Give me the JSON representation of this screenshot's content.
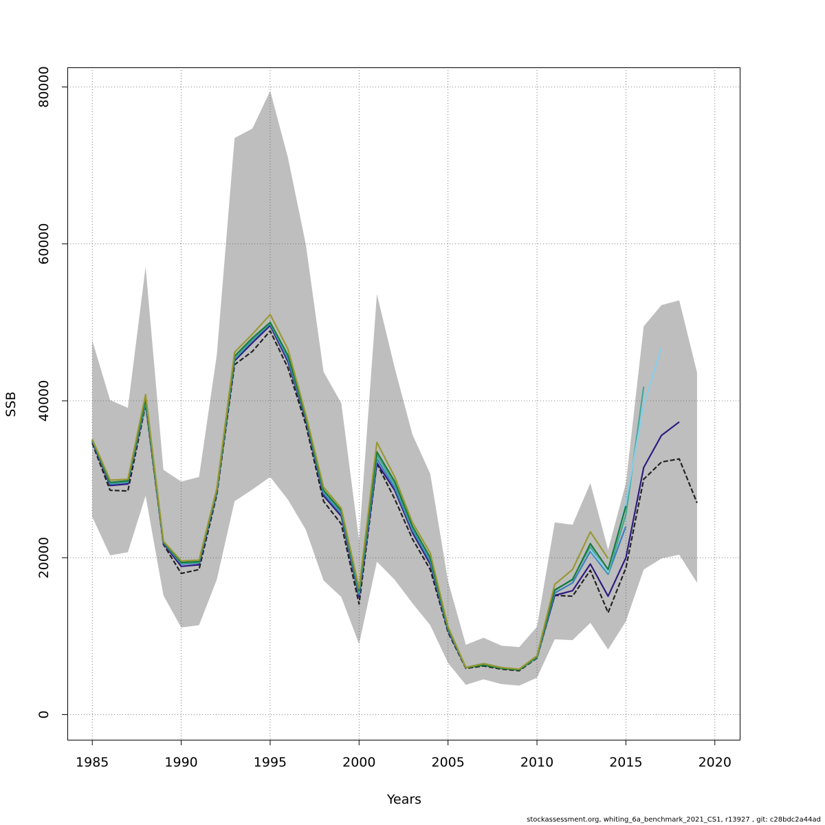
{
  "chart_data": {
    "type": "line",
    "title": "",
    "xlabel": "Years",
    "ylabel": "SSB",
    "xlim": [
      1983.6,
      2021.4
    ],
    "ylim": [
      -3200,
      82500
    ],
    "xticks": [
      1985,
      1990,
      1995,
      2000,
      2005,
      2010,
      2015,
      2020
    ],
    "yticks": [
      0,
      20000,
      40000,
      60000,
      80000
    ],
    "grid": true,
    "confidence_band": {
      "color": "#bebebe",
      "x": [
        1985,
        1986,
        1987,
        1988,
        1989,
        1990,
        1991,
        1992,
        1993,
        1994,
        1995,
        1996,
        1997,
        1998,
        1999,
        2000,
        2001,
        2002,
        2003,
        2004,
        2005,
        2006,
        2007,
        2008,
        2009,
        2010,
        2011,
        2012,
        2013,
        2014,
        2015,
        2016,
        2017,
        2018,
        2019
      ],
      "upper": [
        47700,
        40100,
        39100,
        57100,
        31200,
        29700,
        30300,
        45800,
        73500,
        74700,
        79500,
        71000,
        60000,
        43700,
        39700,
        22200,
        53600,
        44200,
        35700,
        30700,
        17000,
        8900,
        9800,
        8800,
        8600,
        11200,
        24500,
        24200,
        29500,
        21000,
        29500,
        49500,
        52200,
        52800,
        43600
      ],
      "lower": [
        25200,
        20300,
        20700,
        27900,
        15200,
        11100,
        11400,
        17200,
        27200,
        28700,
        30300,
        27400,
        23600,
        17100,
        15000,
        9000,
        19500,
        17200,
        14200,
        11400,
        6600,
        3800,
        4500,
        3900,
        3700,
        4700,
        9600,
        9500,
        11700,
        8300,
        11900,
        18500,
        19900,
        20400,
        16800
      ]
    },
    "series": [
      {
        "color": "#222222",
        "dashed": true,
        "x": [
          1985,
          1986,
          1987,
          1988,
          1989,
          1990,
          1991,
          1992,
          1993,
          1994,
          1995,
          1996,
          1997,
          1998,
          1999,
          2000,
          2001,
          2002,
          2003,
          2004,
          2005,
          2006,
          2007,
          2008,
          2009,
          2010,
          2011,
          2012,
          2013,
          2014,
          2015,
          2016,
          2017,
          2018,
          2019
        ],
        "values": [
          34600,
          28600,
          28500,
          39500,
          21700,
          18000,
          18500,
          28000,
          44600,
          46300,
          48900,
          44200,
          37000,
          27200,
          24300,
          14100,
          32000,
          27500,
          22400,
          18500,
          10500,
          5900,
          6200,
          5800,
          5600,
          7200,
          15200,
          15100,
          18400,
          13000,
          18700,
          30000,
          32200,
          32600,
          27000
        ]
      },
      {
        "color": "#2e1a80",
        "dashed": false,
        "x": [
          1985,
          1986,
          1987,
          1988,
          1989,
          1990,
          1991,
          1992,
          1993,
          1994,
          1995,
          1996,
          1997,
          1998,
          1999,
          2000,
          2001,
          2002,
          2003,
          2004,
          2005,
          2006,
          2007,
          2008,
          2009,
          2010,
          2011,
          2012,
          2013,
          2014,
          2015,
          2016,
          2017,
          2018
        ],
        "values": [
          34800,
          29200,
          29400,
          39700,
          21800,
          18900,
          19100,
          28300,
          45100,
          47400,
          49600,
          45000,
          37600,
          27900,
          25300,
          15000,
          32100,
          28600,
          23200,
          19200,
          10700,
          6000,
          6500,
          6000,
          5700,
          7300,
          15200,
          15800,
          19200,
          15100,
          20000,
          31500,
          35600,
          37300
        ]
      },
      {
        "color": "#3a7fbf",
        "dashed": false,
        "x": [
          1985,
          1986,
          1987,
          1988,
          1989,
          1990,
          1991,
          1992,
          1993,
          1994,
          1995,
          1996,
          1997,
          1998,
          1999,
          2000,
          2001,
          2002,
          2003,
          2004,
          2005,
          2006,
          2007,
          2008,
          2009,
          2010,
          2011,
          2012,
          2013,
          2014,
          2015
        ],
        "values": [
          34900,
          29400,
          29600,
          39800,
          21900,
          19200,
          19300,
          28400,
          45300,
          47700,
          49800,
          45300,
          37800,
          28200,
          25600,
          15300,
          32600,
          28900,
          23500,
          19500,
          10800,
          6000,
          6500,
          6000,
          5700,
          7300,
          15500,
          16800,
          20800,
          17900,
          24000
        ]
      },
      {
        "color": "#45a896",
        "dashed": false,
        "x": [
          1985,
          1986,
          1987,
          1988,
          1989,
          1990,
          1991,
          1992,
          1993,
          1994,
          1995,
          1996,
          1997,
          1998,
          1999,
          2000,
          2001,
          2002,
          2003,
          2004,
          2005,
          2006,
          2007,
          2008,
          2009,
          2010,
          2011,
          2012,
          2013,
          2014,
          2015,
          2016
        ],
        "values": [
          35000,
          29500,
          29700,
          39900,
          22000,
          19300,
          19400,
          28500,
          45400,
          47800,
          49900,
          45600,
          37900,
          28400,
          25800,
          15500,
          33100,
          29300,
          23800,
          19800,
          10900,
          6000,
          6500,
          6000,
          5700,
          7300,
          15800,
          17300,
          21400,
          18000,
          25500,
          41800
        ]
      },
      {
        "color": "#87ceeb",
        "dashed": false,
        "x": [
          2013,
          2014,
          2015,
          2016,
          2017
        ],
        "values": [
          21000,
          18200,
          27000,
          39500,
          46800
        ]
      },
      {
        "color": "#1a7a3a",
        "dashed": false,
        "x": [
          1985,
          1986,
          1987,
          1988,
          1989,
          1990,
          1991,
          1992,
          1993,
          1994,
          1995,
          1996,
          1997,
          1998,
          1999,
          2000,
          2001,
          2002,
          2003,
          2004,
          2005,
          2006,
          2007,
          2008,
          2009,
          2010,
          2011,
          2012,
          2013,
          2014,
          2015
        ],
        "values": [
          35000,
          29600,
          29800,
          40200,
          22000,
          19400,
          19500,
          28600,
          45700,
          48000,
          50000,
          45800,
          38000,
          28600,
          26000,
          15800,
          33500,
          29700,
          24000,
          20000,
          11000,
          6000,
          6300,
          5900,
          5700,
          7400,
          15900,
          17200,
          21800,
          18500,
          26600
        ]
      },
      {
        "color": "#999933",
        "dashed": false,
        "x": [
          1985,
          1986,
          1987,
          1988,
          1989,
          1990,
          1991,
          1992,
          1993,
          1994,
          1995,
          1996,
          1997,
          1998,
          1999,
          2000,
          2001,
          2002,
          2003,
          2004,
          2005,
          2006,
          2007,
          2008,
          2009,
          2010,
          2011,
          2012,
          2013,
          2014
        ],
        "values": [
          35100,
          29900,
          30000,
          40800,
          22100,
          19600,
          19700,
          28800,
          46200,
          48500,
          51000,
          46600,
          38300,
          29000,
          26300,
          16100,
          34700,
          30300,
          24500,
          20600,
          11200,
          6000,
          6500,
          6000,
          5800,
          7500,
          16600,
          18500,
          23300,
          19900
        ]
      }
    ]
  },
  "footer": "stockassessment.org, whiting_6a_benchmark_2021_CS1, r13927 , git: c28bdc2a44ad"
}
